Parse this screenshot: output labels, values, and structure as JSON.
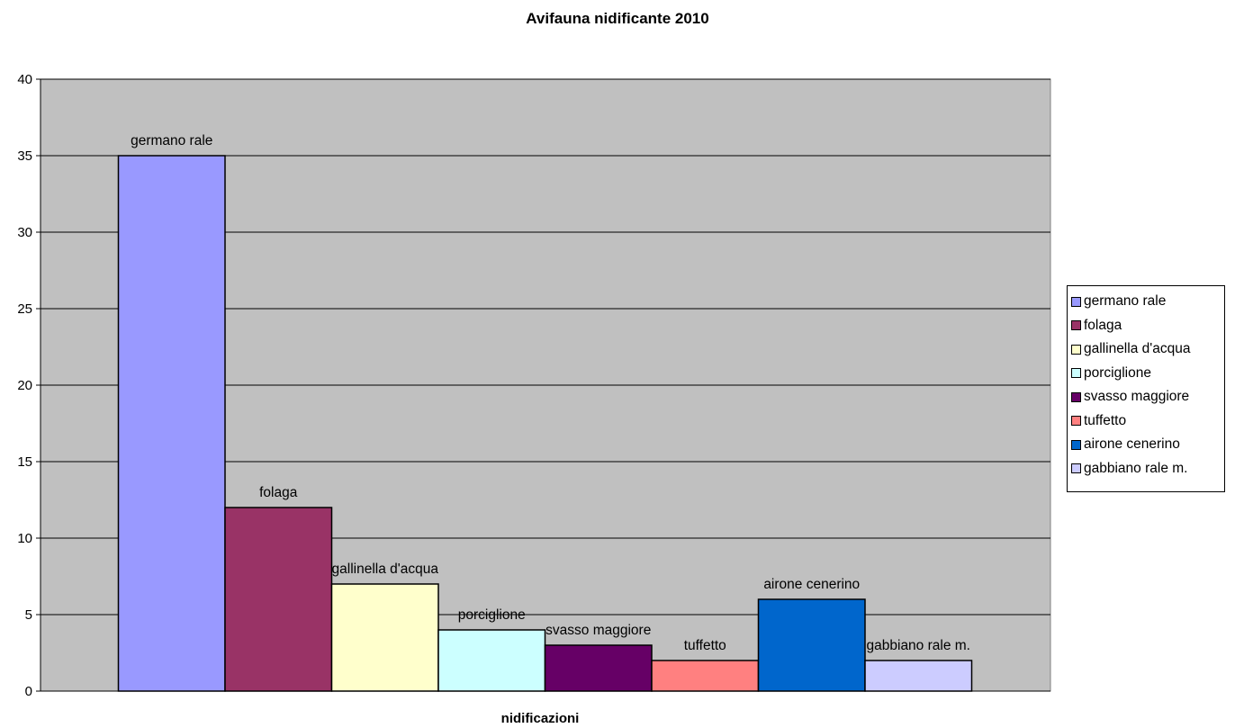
{
  "chart_data": {
    "type": "bar",
    "title": "Avifauna nidificante 2010",
    "xlabel": "nidificazioni",
    "ylabel": "",
    "ylim": [
      0,
      40
    ],
    "yticks": [
      "0",
      "5",
      "10",
      "15",
      "20",
      "25",
      "30",
      "35",
      "40"
    ],
    "grid": true,
    "legend_position": "right",
    "plot_background": "#c0c0c0",
    "series": [
      {
        "name": "germano rale",
        "value": 35,
        "color": "#9999ff"
      },
      {
        "name": "folaga",
        "value": 12,
        "color": "#993366"
      },
      {
        "name": "gallinella d'acqua",
        "value": 7,
        "color": "#ffffcc"
      },
      {
        "name": "porciglione",
        "value": 4,
        "color": "#ccffff"
      },
      {
        "name": "svasso maggiore",
        "value": 3,
        "color": "#660066"
      },
      {
        "name": "tuffetto",
        "value": 2,
        "color": "#ff8080"
      },
      {
        "name": "airone cenerino",
        "value": 6,
        "color": "#0066cc"
      },
      {
        "name": "gabbiano rale m.",
        "value": 2,
        "color": "#ccccff"
      }
    ]
  }
}
